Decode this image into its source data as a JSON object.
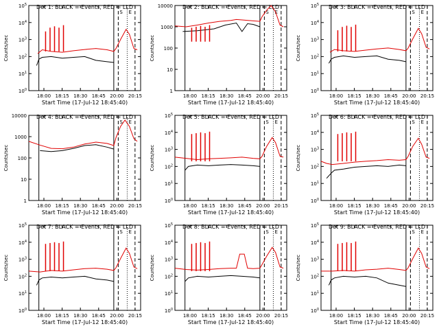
{
  "figure": {
    "common_xlabel": "Start Time (17-Jul-12 18:45:40)",
    "common_ylabel": "Counts/sec",
    "colors": {
      "events": "#000000",
      "lld": "#e00000",
      "axes": "#000000"
    },
    "vline_marker_labels": [
      "S",
      "E"
    ]
  },
  "chart_data": [
    {
      "type": "line",
      "title": "Det 1: BLACK = Events, RED = LLD",
      "xlabel": "Start Time (17-Jul-12 18:45:40)",
      "ylabel": "Counts/sec",
      "xticks": [
        "18:00",
        "18:15",
        "18:30",
        "18:45",
        "20:00",
        "20:15"
      ],
      "yscale": "log",
      "ylim": [
        1,
        100000
      ],
      "yticks": [
        "10^0",
        "10^1",
        "10^2",
        "10^3",
        "10^4",
        "10^5"
      ],
      "xlim": [
        0,
        100
      ],
      "vlines": {
        "solid": [
          9,
          76
        ],
        "dashed": [
          80,
          95
        ],
        "dotted": [
          88
        ]
      },
      "series": [
        {
          "name": "Events",
          "color": "#000000",
          "x": [
            7,
            9,
            12,
            20,
            30,
            40,
            50,
            60,
            70,
            76
          ],
          "y": [
            30,
            70,
            90,
            100,
            80,
            90,
            100,
            60,
            50,
            45
          ]
        },
        {
          "name": "LLD",
          "color": "#e00000",
          "x": [
            8,
            12,
            20,
            30,
            40,
            50,
            60,
            70,
            76,
            78,
            82,
            87,
            90,
            94,
            97
          ],
          "y": [
            150,
            250,
            200,
            180,
            220,
            260,
            300,
            250,
            200,
            300,
            1000,
            4000,
            2000,
            300,
            250
          ]
        },
        {
          "name": "LLD spikes",
          "color": "#e00000",
          "x": [
            15,
            19,
            23,
            27,
            31
          ],
          "y": [
            3000,
            5000,
            6000,
            5000,
            7000
          ]
        }
      ]
    },
    {
      "type": "line",
      "title": "Det 2: BLACK = Events, RED = LLD",
      "xlabel": "Start Time (17-Jul-12 18:45:40)",
      "ylabel": "Counts/sec",
      "xticks": [
        "18:00",
        "18:15",
        "18:30",
        "18:45",
        "20:00",
        "20:15"
      ],
      "yscale": "log",
      "ylim": [
        1,
        10000
      ],
      "yticks": [
        "1",
        "10",
        "100",
        "1000",
        "10000"
      ],
      "xlim": [
        0,
        100
      ],
      "vlines": {
        "solid": [
          9,
          76
        ],
        "dashed": [
          80,
          95
        ],
        "dotted": [
          88
        ]
      },
      "series": [
        {
          "name": "Events",
          "color": "#000000",
          "x": [
            7,
            20,
            35,
            45,
            55,
            60,
            65,
            70,
            76
          ],
          "y": [
            600,
            650,
            800,
            1200,
            1500,
            600,
            1400,
            1300,
            1000
          ]
        },
        {
          "name": "LLD",
          "color": "#e00000",
          "x": [
            0,
            10,
            20,
            30,
            40,
            50,
            55,
            60,
            70,
            76,
            78,
            82,
            86,
            90,
            94,
            97
          ],
          "y": [
            1100,
            1000,
            1200,
            1500,
            1800,
            2000,
            2200,
            2100,
            1900,
            1800,
            3000,
            6000,
            10000,
            5000,
            1200,
            1000
          ]
        },
        {
          "name": "LLD spikes",
          "color": "#e00000",
          "x": [
            15,
            19,
            23,
            27,
            31
          ],
          "y": [
            900,
            1000,
            1100,
            1000,
            1200
          ]
        }
      ]
    },
    {
      "type": "line",
      "title": "Det 3: BLACK = Events, RED = LLD",
      "xlabel": "Start Time (17-Jul-12 18:45:40)",
      "ylabel": "Counts/sec",
      "xticks": [
        "18:00",
        "18:15",
        "18:30",
        "18:45",
        "20:00",
        "20:15"
      ],
      "yscale": "log",
      "ylim": [
        1,
        100000
      ],
      "yticks": [
        "10^0",
        "10^1",
        "10^2",
        "10^3",
        "10^4",
        "10^5"
      ],
      "xlim": [
        0,
        100
      ],
      "vlines": {
        "solid": [
          9,
          76
        ],
        "dashed": [
          80,
          95
        ],
        "dotted": [
          88
        ]
      },
      "series": [
        {
          "name": "Events",
          "color": "#000000",
          "x": [
            7,
            9,
            12,
            20,
            30,
            40,
            50,
            60,
            70,
            76
          ],
          "y": [
            40,
            70,
            90,
            110,
            90,
            100,
            110,
            70,
            60,
            50
          ]
        },
        {
          "name": "LLD",
          "color": "#e00000",
          "x": [
            8,
            12,
            20,
            30,
            40,
            50,
            60,
            70,
            76,
            78,
            82,
            87,
            90,
            94,
            97
          ],
          "y": [
            180,
            260,
            220,
            200,
            240,
            280,
            320,
            260,
            220,
            320,
            1100,
            4500,
            2200,
            350,
            280
          ]
        },
        {
          "name": "LLD spikes",
          "color": "#e00000",
          "x": [
            15,
            19,
            23,
            27,
            31
          ],
          "y": [
            3500,
            5500,
            6500,
            5500,
            7500
          ]
        }
      ]
    },
    {
      "type": "line",
      "title": "Det 4: BLACK = Events, RED = LLD",
      "xlabel": "Start Time (17-Jul-12 18:45:40)",
      "ylabel": "Counts/sec",
      "xticks": [
        "18:00",
        "18:15",
        "18:30",
        "18:45",
        "20:00",
        "20:15"
      ],
      "yscale": "log",
      "ylim": [
        1,
        10000
      ],
      "yticks": [
        "1",
        "10",
        "100",
        "1000",
        "10000"
      ],
      "xlim": [
        0,
        100
      ],
      "vlines": {
        "solid": [
          9,
          76
        ],
        "dashed": [
          80,
          95
        ],
        "dotted": [
          88
        ]
      },
      "series": [
        {
          "name": "Events",
          "color": "#000000",
          "x": [
            10,
            20,
            30,
            40,
            50,
            60,
            70,
            76
          ],
          "y": [
            220,
            200,
            220,
            280,
            380,
            420,
            320,
            260
          ]
        },
        {
          "name": "LLD",
          "color": "#e00000",
          "x": [
            0,
            10,
            20,
            30,
            40,
            50,
            60,
            70,
            76,
            78,
            82,
            86,
            90,
            94,
            97
          ],
          "y": [
            600,
            400,
            280,
            270,
            320,
            450,
            550,
            480,
            380,
            900,
            3000,
            6000,
            3000,
            800,
            600
          ]
        }
      ]
    },
    {
      "type": "line",
      "title": "Det 5: BLACK = Events, RED = LLD",
      "xlabel": "Start Time (17-Jul-12 18:45:40)",
      "ylabel": "Counts/sec",
      "xticks": [
        "18:00",
        "18:15",
        "18:30",
        "18:45",
        "20:00",
        "20:15"
      ],
      "yscale": "log",
      "ylim": [
        1,
        100000
      ],
      "yticks": [
        "10^0",
        "10^1",
        "10^2",
        "10^3",
        "10^4",
        "10^5"
      ],
      "xlim": [
        0,
        100
      ],
      "vlines": {
        "solid": [
          9,
          76
        ],
        "dashed": [
          80,
          95
        ],
        "dotted": [
          88
        ]
      },
      "series": [
        {
          "name": "Events",
          "color": "#000000",
          "x": [
            9,
            12,
            20,
            30,
            40,
            50,
            60,
            70,
            76
          ],
          "y": [
            60,
            100,
            120,
            110,
            120,
            130,
            120,
            110,
            100
          ]
        },
        {
          "name": "LLD",
          "color": "#e00000",
          "x": [
            0,
            10,
            20,
            30,
            40,
            50,
            60,
            70,
            76,
            78,
            82,
            87,
            90,
            94,
            97
          ],
          "y": [
            350,
            300,
            250,
            280,
            300,
            320,
            350,
            300,
            280,
            400,
            1500,
            5000,
            2500,
            400,
            350
          ]
        },
        {
          "name": "LLD spikes",
          "color": "#e00000",
          "x": [
            15,
            19,
            23,
            27,
            31
          ],
          "y": [
            8000,
            9000,
            10000,
            9000,
            11000
          ]
        }
      ]
    },
    {
      "type": "line",
      "title": "Det 6: BLACK = Events, RED = LLD",
      "xlabel": "Start Time (17-Jul-12 18:45:40)",
      "ylabel": "Counts/sec",
      "xticks": [
        "18:00",
        "18:15",
        "18:30",
        "18:45",
        "20:00",
        "20:15"
      ],
      "yscale": "log",
      "ylim": [
        1,
        100000
      ],
      "yticks": [
        "10^0",
        "10^1",
        "10^2",
        "10^3",
        "10^4",
        "10^5"
      ],
      "xlim": [
        0,
        100
      ],
      "vlines": {
        "solid": [
          9,
          76
        ],
        "dashed": [
          80,
          95
        ],
        "dotted": [
          88
        ]
      },
      "series": [
        {
          "name": "Events",
          "color": "#000000",
          "x": [
            5,
            9,
            12,
            20,
            30,
            40,
            50,
            60,
            70,
            76
          ],
          "y": [
            20,
            40,
            60,
            70,
            90,
            100,
            110,
            100,
            120,
            110
          ]
        },
        {
          "name": "LLD",
          "color": "#e00000",
          "x": [
            0,
            5,
            10,
            20,
            30,
            40,
            50,
            60,
            70,
            76,
            78,
            82,
            87,
            90,
            94,
            97
          ],
          "y": [
            200,
            150,
            130,
            150,
            180,
            200,
            220,
            250,
            230,
            250,
            400,
            1500,
            4500,
            2000,
            350,
            300
          ]
        },
        {
          "name": "LLD spikes",
          "color": "#e00000",
          "x": [
            15,
            19,
            23,
            27,
            31
          ],
          "y": [
            8000,
            9000,
            10000,
            9000,
            11000
          ]
        }
      ]
    },
    {
      "type": "line",
      "title": "Det 7: BLACK = Events, RED = LLD",
      "xlabel": "Start Time (17-Jul-12 18:45:40)",
      "ylabel": "Counts/sec",
      "xticks": [
        "18:00",
        "18:15",
        "18:30",
        "18:45",
        "20:00",
        "20:15"
      ],
      "yscale": "log",
      "ylim": [
        1,
        100000
      ],
      "yticks": [
        "10^0",
        "10^1",
        "10^2",
        "10^3",
        "10^4",
        "10^5"
      ],
      "xlim": [
        0,
        100
      ],
      "vlines": {
        "solid": [
          9,
          76
        ],
        "dashed": [
          80,
          95
        ],
        "dotted": [
          88
        ]
      },
      "series": [
        {
          "name": "Events",
          "color": "#000000",
          "x": [
            7,
            9,
            12,
            20,
            30,
            40,
            50,
            60,
            70,
            76
          ],
          "y": [
            30,
            60,
            80,
            90,
            80,
            90,
            100,
            70,
            60,
            50
          ]
        },
        {
          "name": "LLD",
          "color": "#e00000",
          "x": [
            0,
            10,
            20,
            30,
            40,
            50,
            60,
            70,
            76,
            78,
            82,
            87,
            90,
            94,
            97
          ],
          "y": [
            200,
            180,
            220,
            200,
            240,
            280,
            300,
            260,
            220,
            320,
            1100,
            4500,
            2200,
            350,
            280
          ]
        },
        {
          "name": "LLD spikes",
          "color": "#e00000",
          "x": [
            15,
            19,
            23,
            27,
            31
          ],
          "y": [
            8000,
            9000,
            10000,
            9000,
            11000
          ]
        }
      ]
    },
    {
      "type": "line",
      "title": "Det 8: BLACK = Events, RED = LLD",
      "xlabel": "Start Time (17-Jul-12 18:45:40)",
      "ylabel": "Counts/sec",
      "xticks": [
        "18:00",
        "18:15",
        "18:30",
        "18:45",
        "20:00",
        "20:15"
      ],
      "yscale": "log",
      "ylim": [
        1,
        100000
      ],
      "yticks": [
        "10^0",
        "10^1",
        "10^2",
        "10^3",
        "10^4",
        "10^5"
      ],
      "xlim": [
        0,
        100
      ],
      "vlines": {
        "solid": [
          9,
          76
        ],
        "dashed": [
          80,
          95
        ],
        "dotted": [
          88
        ]
      },
      "series": [
        {
          "name": "Events",
          "color": "#000000",
          "x": [
            9,
            12,
            20,
            30,
            40,
            50,
            60,
            70,
            76
          ],
          "y": [
            50,
            80,
            100,
            90,
            100,
            110,
            100,
            90,
            80
          ]
        },
        {
          "name": "LLD",
          "color": "#e00000",
          "x": [
            0,
            10,
            20,
            30,
            40,
            50,
            55,
            58,
            62,
            65,
            70,
            76,
            78,
            82,
            87,
            90,
            94,
            97
          ],
          "y": [
            300,
            250,
            230,
            250,
            280,
            300,
            300,
            2000,
            2000,
            300,
            280,
            300,
            500,
            1500,
            5000,
            2500,
            350,
            300
          ]
        },
        {
          "name": "LLD spikes",
          "color": "#e00000",
          "x": [
            15,
            19,
            23,
            27,
            31
          ],
          "y": [
            8000,
            9000,
            10000,
            9000,
            11000
          ]
        }
      ]
    },
    {
      "type": "line",
      "title": "Det 9: BLACK = Events, RED = LLD",
      "xlabel": "Start Time (17-Jul-12 18:45:40)",
      "ylabel": "Counts/sec",
      "xticks": [
        "18:00",
        "18:15",
        "18:30",
        "18:45",
        "20:00",
        "20:15"
      ],
      "yscale": "log",
      "ylim": [
        1,
        100000
      ],
      "yticks": [
        "10^0",
        "10^1",
        "10^2",
        "10^3",
        "10^4",
        "10^5"
      ],
      "xlim": [
        0,
        100
      ],
      "vlines": {
        "solid": [
          9,
          76
        ],
        "dashed": [
          80,
          95
        ],
        "dotted": [
          88
        ]
      },
      "series": [
        {
          "name": "Events",
          "color": "#000000",
          "x": [
            7,
            9,
            12,
            20,
            30,
            40,
            50,
            60,
            70,
            76
          ],
          "y": [
            30,
            60,
            80,
            100,
            90,
            100,
            80,
            40,
            30,
            25
          ]
        },
        {
          "name": "LLD",
          "color": "#e00000",
          "x": [
            0,
            10,
            20,
            30,
            40,
            50,
            60,
            70,
            76,
            78,
            82,
            87,
            90,
            94,
            97
          ],
          "y": [
            200,
            200,
            220,
            200,
            240,
            260,
            300,
            250,
            220,
            320,
            1100,
            4500,
            2200,
            350,
            280
          ]
        },
        {
          "name": "LLD spikes",
          "color": "#e00000",
          "x": [
            15,
            19,
            23,
            27,
            31
          ],
          "y": [
            8000,
            9000,
            10000,
            9000,
            11000
          ]
        }
      ]
    }
  ]
}
